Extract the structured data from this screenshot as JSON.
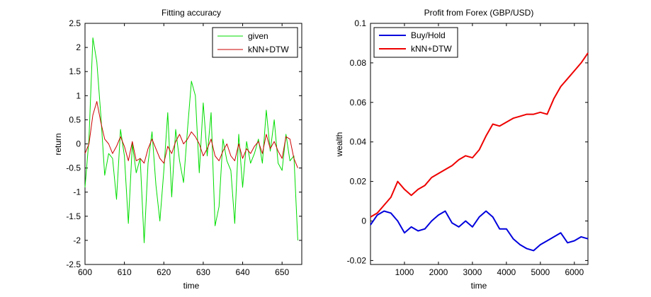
{
  "chart_data": [
    {
      "type": "line",
      "title": "Fitting accuracy",
      "xlabel": "time",
      "ylabel": "return",
      "xlim": [
        600,
        655
      ],
      "ylim": [
        -2.5,
        2.5
      ],
      "xticks": [
        600,
        610,
        620,
        630,
        640,
        650
      ],
      "yticks": [
        -2.5,
        -2,
        -1.5,
        -1,
        -0.5,
        0,
        0.5,
        1,
        1.5,
        2,
        2.5
      ],
      "ytick_labels": [
        "-2.5",
        "-2",
        "-1.5",
        "-1",
        "-0.5",
        "0",
        "0.5",
        "1",
        "1.5",
        "2",
        "2.5"
      ],
      "legend_position": "top-right",
      "series": [
        {
          "name": "given",
          "color": "#00dd00",
          "x": [
            600,
            601,
            602,
            603,
            604,
            605,
            606,
            607,
            608,
            609,
            610,
            611,
            612,
            613,
            614,
            615,
            616,
            617,
            618,
            619,
            620,
            621,
            622,
            623,
            624,
            625,
            626,
            627,
            628,
            629,
            630,
            631,
            632,
            633,
            634,
            635,
            636,
            637,
            638,
            639,
            640,
            641,
            642,
            643,
            644,
            645,
            646,
            647,
            648,
            649,
            650,
            651,
            652,
            653,
            654
          ],
          "values": [
            -0.9,
            0.1,
            2.2,
            1.7,
            0.6,
            -0.65,
            -0.2,
            -0.3,
            -1.15,
            0.3,
            -0.25,
            -1.65,
            0.0,
            -0.6,
            -0.3,
            -2.05,
            -0.4,
            0.25,
            -0.85,
            -1.6,
            -0.55,
            0.65,
            -1.1,
            0.3,
            -0.35,
            -0.8,
            0.3,
            1.3,
            1.0,
            -0.6,
            0.85,
            -0.25,
            0.65,
            -1.7,
            -1.3,
            0.1,
            -0.35,
            -0.55,
            -1.65,
            0.2,
            -0.9,
            0.05,
            -0.4,
            -0.2,
            0.1,
            -0.4,
            0.7,
            -0.15,
            0.5,
            -0.4,
            -0.55,
            0.2,
            -0.35,
            -0.25,
            -2.0
          ]
        },
        {
          "name": "kNN+DTW",
          "color": "#cc0000",
          "x": [
            600,
            601,
            602,
            603,
            604,
            605,
            606,
            607,
            608,
            609,
            610,
            611,
            612,
            613,
            614,
            615,
            616,
            617,
            618,
            619,
            620,
            621,
            622,
            623,
            624,
            625,
            626,
            627,
            628,
            629,
            630,
            631,
            632,
            633,
            634,
            635,
            636,
            637,
            638,
            639,
            640,
            641,
            642,
            643,
            644,
            645,
            646,
            647,
            648,
            649,
            650,
            651,
            652,
            653,
            654
          ],
          "values": [
            -0.2,
            0.0,
            0.6,
            0.88,
            0.45,
            0.1,
            0.0,
            -0.2,
            -0.05,
            0.15,
            -0.05,
            -0.35,
            0.05,
            -0.35,
            -0.3,
            -0.4,
            -0.1,
            0.1,
            -0.1,
            -0.3,
            -0.4,
            -0.05,
            -0.2,
            0.05,
            0.2,
            0.0,
            0.1,
            0.25,
            0.15,
            0.0,
            -0.25,
            -0.1,
            0.1,
            -0.25,
            -0.35,
            -0.15,
            0.0,
            -0.25,
            -0.35,
            0.0,
            -0.3,
            -0.1,
            -0.2,
            -0.05,
            0.05,
            -0.2,
            0.2,
            -0.1,
            0.05,
            -0.15,
            -0.3,
            0.15,
            0.1,
            -0.3,
            -0.5
          ]
        }
      ]
    },
    {
      "type": "line",
      "title": "Profit from Forex (GBP/USD)",
      "xlabel": "time",
      "ylabel": "wealth",
      "xlim": [
        0,
        6400
      ],
      "ylim": [
        -0.022,
        0.1
      ],
      "xticks": [
        1000,
        2000,
        3000,
        4000,
        5000,
        6000
      ],
      "yticks": [
        -0.02,
        0,
        0.02,
        0.04,
        0.06,
        0.08,
        0.1
      ],
      "ytick_labels": [
        "-0.02",
        "0",
        "0.02",
        "0.04",
        "0.06",
        "0.08",
        "0.1"
      ],
      "legend_position": "top-left",
      "series": [
        {
          "name": "Buy/Hold",
          "color": "#0000dd",
          "x": [
            0,
            200,
            400,
            600,
            800,
            1000,
            1200,
            1400,
            1600,
            1800,
            2000,
            2200,
            2400,
            2600,
            2800,
            3000,
            3200,
            3400,
            3600,
            3800,
            4000,
            4200,
            4400,
            4600,
            4800,
            5000,
            5200,
            5400,
            5600,
            5800,
            6000,
            6200,
            6400
          ],
          "values": [
            -0.002,
            0.003,
            0.005,
            0.004,
            0.0,
            -0.006,
            -0.003,
            -0.005,
            -0.004,
            0.0,
            0.003,
            0.005,
            -0.001,
            -0.003,
            0.0,
            -0.003,
            0.002,
            0.005,
            0.002,
            -0.004,
            -0.004,
            -0.009,
            -0.012,
            -0.014,
            -0.015,
            -0.012,
            -0.01,
            -0.008,
            -0.006,
            -0.011,
            -0.01,
            -0.008,
            -0.009
          ]
        },
        {
          "name": "kNN+DTW",
          "color": "#ee0000",
          "x": [
            0,
            200,
            400,
            600,
            800,
            1000,
            1200,
            1400,
            1600,
            1800,
            2000,
            2200,
            2400,
            2600,
            2800,
            3000,
            3200,
            3400,
            3600,
            3800,
            4000,
            4200,
            4400,
            4600,
            4800,
            5000,
            5200,
            5400,
            5600,
            5800,
            6000,
            6200,
            6400
          ],
          "values": [
            0.002,
            0.004,
            0.008,
            0.012,
            0.02,
            0.016,
            0.013,
            0.016,
            0.018,
            0.022,
            0.024,
            0.026,
            0.028,
            0.031,
            0.033,
            0.032,
            0.036,
            0.043,
            0.049,
            0.048,
            0.05,
            0.052,
            0.053,
            0.054,
            0.054,
            0.055,
            0.054,
            0.062,
            0.068,
            0.072,
            0.076,
            0.08,
            0.085
          ]
        }
      ]
    }
  ]
}
